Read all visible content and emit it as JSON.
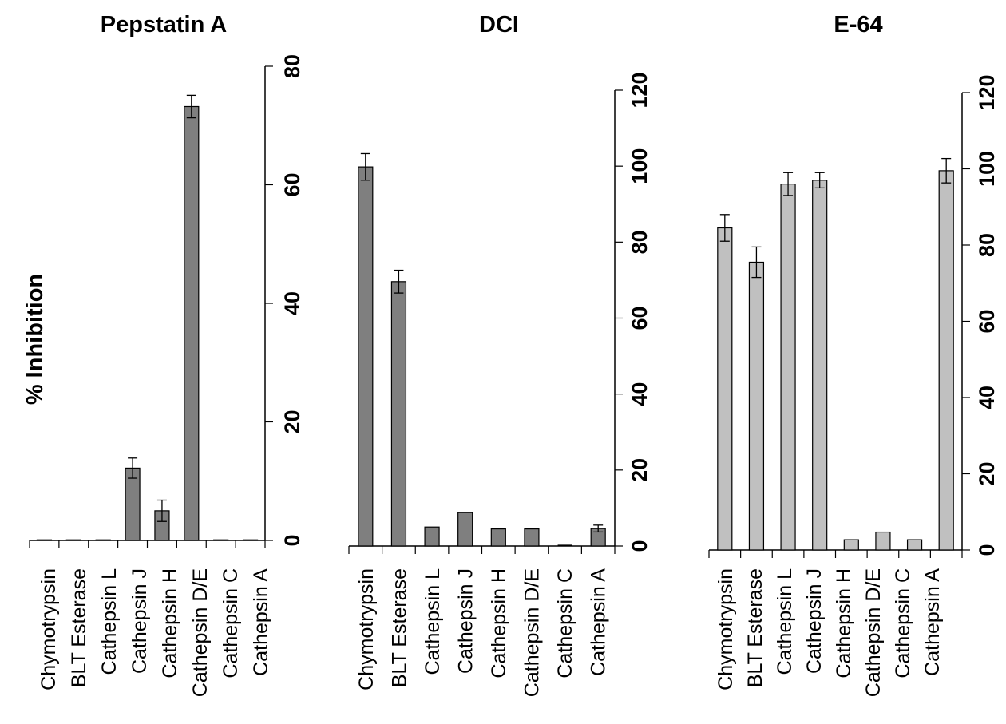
{
  "figure": {
    "ylabel": "% Inhibition"
  },
  "chart_data": [
    {
      "type": "bar",
      "title": "Pepstatin A",
      "categories": [
        "Chymotrypsin",
        "BLT Esterase",
        "Cathepsin L",
        "Cathepsin J",
        "Cathepsin H",
        "Cathepsin D/E",
        "Cathepsin C",
        "Cathepsin A"
      ],
      "values": [
        0.1,
        0.1,
        0.1,
        12.2,
        5.0,
        73.2,
        0.1,
        0.1
      ],
      "errors": [
        0,
        0,
        0,
        1.7,
        1.8,
        1.9,
        0,
        0
      ],
      "ylim": [
        0,
        80
      ],
      "yticks": [
        0,
        20,
        40,
        60,
        80
      ],
      "ylabel": "% Inhibition",
      "bar_color": "#7f7f7f",
      "axis_side": "right"
    },
    {
      "type": "bar",
      "title": "DCI",
      "categories": [
        "Chymotrypsin",
        "BLT Esterase",
        "Cathepsin L",
        "Cathepsin J",
        "Cathepsin H",
        "Cathepsin D/E",
        "Cathepsin C",
        "Cathepsin A"
      ],
      "values": [
        99.8,
        69.6,
        5.0,
        8.8,
        4.5,
        4.5,
        0,
        4.6
      ],
      "errors": [
        3.5,
        3.0,
        0,
        0,
        0,
        0,
        0,
        0.9
      ],
      "ylim": [
        0,
        120
      ],
      "yticks": [
        0,
        20,
        40,
        60,
        80,
        100,
        120
      ],
      "bar_color": "#7f7f7f",
      "axis_side": "right"
    },
    {
      "type": "bar",
      "title": "E-64",
      "categories": [
        "Chymotrypsin",
        "BLT Esterase",
        "Cathepsin L",
        "Cathepsin J",
        "Cathepsin H",
        "Cathepsin D/E",
        "Cathepsin C",
        "Cathepsin A"
      ],
      "values": [
        84.5,
        75.5,
        96.0,
        97.0,
        2.7,
        4.7,
        2.7,
        99.5
      ],
      "errors": [
        3.5,
        4.0,
        3.0,
        2.0,
        0,
        0,
        0,
        3.2
      ],
      "ylim": [
        0,
        120
      ],
      "yticks": [
        0,
        20,
        40,
        60,
        80,
        100,
        120
      ],
      "bar_color": "#c0c0c0",
      "axis_side": "right"
    }
  ]
}
